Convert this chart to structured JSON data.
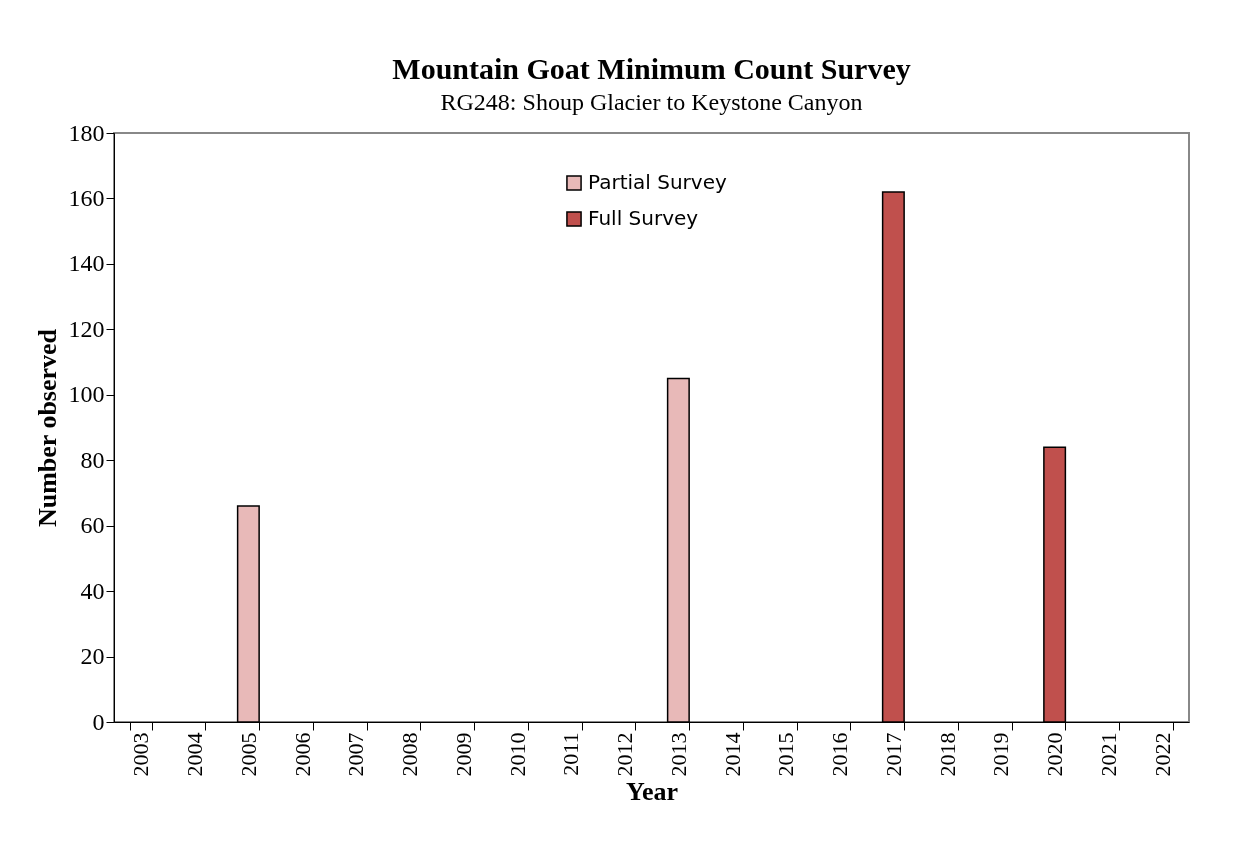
{
  "chart_data": {
    "type": "bar",
    "title": "Mountain Goat Minimum Count Survey",
    "subtitle": "RG248: Shoup Glacier to Keystone Canyon",
    "xlabel": "Year",
    "ylabel": "Number observed",
    "categories": [
      "2003",
      "2004",
      "2005",
      "2006",
      "2007",
      "2008",
      "2009",
      "2010",
      "2011",
      "2012",
      "2013",
      "2014",
      "2015",
      "2016",
      "2017",
      "2018",
      "2019",
      "2020",
      "2021",
      "2022"
    ],
    "series": [
      {
        "name": "Partial Survey",
        "color": "#e8b9b8",
        "values": [
          null,
          null,
          66,
          null,
          null,
          null,
          null,
          null,
          null,
          null,
          105,
          null,
          null,
          null,
          null,
          null,
          null,
          null,
          null,
          null
        ]
      },
      {
        "name": "Full Survey",
        "color": "#c0504d",
        "values": [
          null,
          null,
          null,
          null,
          null,
          null,
          null,
          null,
          null,
          null,
          null,
          null,
          null,
          null,
          162,
          null,
          null,
          84,
          null,
          null
        ]
      }
    ],
    "ylim": [
      0,
      180
    ],
    "yticks": [
      0,
      20,
      40,
      60,
      80,
      100,
      120,
      140,
      160,
      180
    ],
    "grid": false,
    "legend": "top"
  }
}
